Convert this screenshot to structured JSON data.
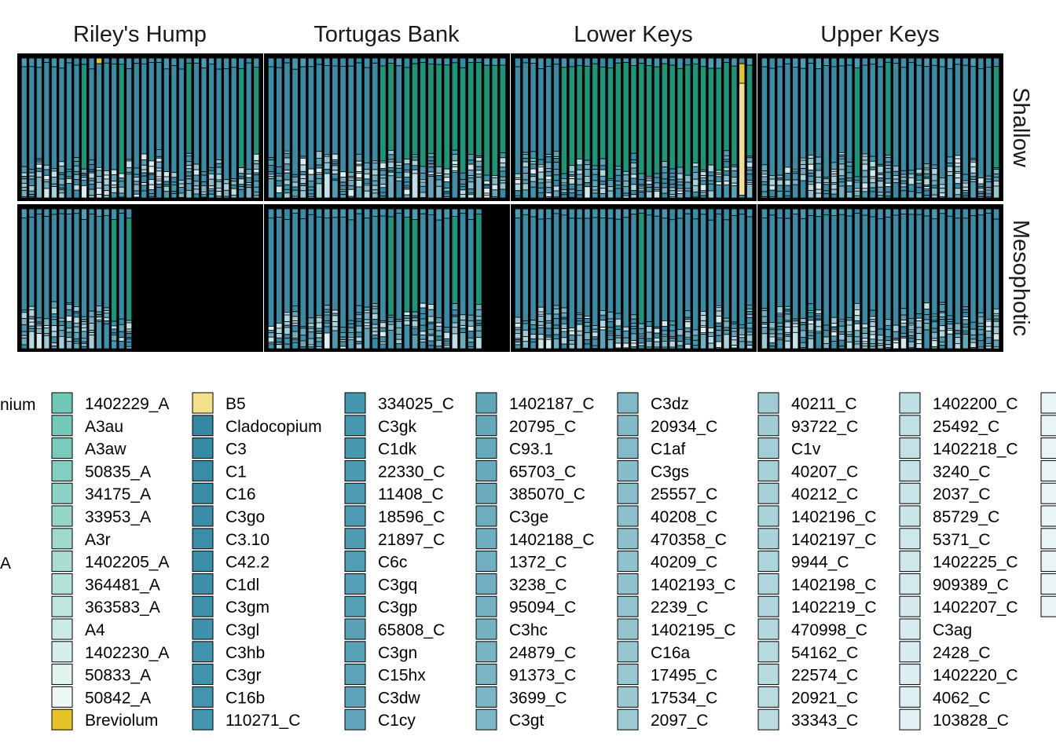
{
  "chart_data": {
    "type": "bar",
    "layout": "faceted-stacked-bar",
    "facet_columns": [
      "Riley's Hump",
      "Tortugas Bank",
      "Lower Keys",
      "Upper Keys"
    ],
    "facet_rows": [
      "Shallow",
      "Mesophotic"
    ],
    "ylim": [
      0,
      1
    ],
    "grid": false,
    "legend_position": "bottom",
    "colors": {
      "panel_background": "#000000",
      "bar_outline": "#000000",
      "dominant_cladocopium": "#3b8ba5",
      "dominant_alt": "#1e9478",
      "breviolum": "#e4c42a",
      "b5": "#f3e08a"
    },
    "samples_per_panel": [
      [
        32,
        30,
        31,
        31
      ],
      [
        15,
        27,
        31,
        31
      ]
    ],
    "highlights": [
      {
        "panel": "Lower Keys / Shallow",
        "sample": 29,
        "profile": "B5",
        "fraction": 0.82
      },
      {
        "panel": "Lower Keys / Shallow",
        "sample": 29,
        "profile": "Breviolum",
        "fraction": 0.14
      },
      {
        "panel": "Riley's Hump / Shallow",
        "sample": 10,
        "profile": "Breviolum",
        "fraction": 0.04
      }
    ],
    "legend": {
      "title_partial": "nium",
      "partial_column": [
        "",
        "",
        "",
        "",
        "",
        "",
        "",
        "A"
      ],
      "columns": [
        {
          "entries": [
            {
              "label": "1402229_A",
              "color": "#6fc7b6"
            },
            {
              "label": "A3au",
              "color": "#74c9b9"
            },
            {
              "label": "A3aw",
              "color": "#7acbbc"
            },
            {
              "label": "50835_A",
              "color": "#82cfc0"
            },
            {
              "label": "34175_A",
              "color": "#8bd2c4"
            },
            {
              "label": "33953_A",
              "color": "#95d6c9"
            },
            {
              "label": "A3r",
              "color": "#9fdacd"
            },
            {
              "label": "1402205_A",
              "color": "#a9ddd2"
            },
            {
              "label": "364481_A",
              "color": "#b4e2d8"
            },
            {
              "label": "363583_A",
              "color": "#bfe6de"
            },
            {
              "label": "A4",
              "color": "#caebe4"
            },
            {
              "label": "1402230_A",
              "color": "#d6efea"
            },
            {
              "label": "50833_A",
              "color": "#e2f4f0"
            },
            {
              "label": "50842_A",
              "color": "#eef8f6"
            },
            {
              "label": "Breviolum",
              "color": "#e4c42a"
            }
          ]
        },
        {
          "entries": [
            {
              "label": "B5",
              "color": "#f3e08a"
            },
            {
              "label": "Cladocopium",
              "color": "#3488a3"
            },
            {
              "label": "C3",
              "color": "#358aa5"
            },
            {
              "label": "C1",
              "color": "#378ca6"
            },
            {
              "label": "C16",
              "color": "#388ca7"
            },
            {
              "label": "C3go",
              "color": "#398da8"
            },
            {
              "label": "C3.10",
              "color": "#3a8ea8"
            },
            {
              "label": "C42.2",
              "color": "#3b8fa9"
            },
            {
              "label": "C1dl",
              "color": "#3c90aa"
            },
            {
              "label": "C3gm",
              "color": "#3d91ab"
            },
            {
              "label": "C3gl",
              "color": "#3e92ab"
            },
            {
              "label": "C3hb",
              "color": "#3f93ac"
            },
            {
              "label": "C3gr",
              "color": "#4094ad"
            },
            {
              "label": "C16b",
              "color": "#4195ad"
            },
            {
              "label": "110271_C",
              "color": "#4296ae"
            }
          ]
        },
        {
          "entries": [
            {
              "label": "334025_C",
              "color": "#4497af"
            },
            {
              "label": "C3gk",
              "color": "#4698b0"
            },
            {
              "label": "C1dk",
              "color": "#4899b0"
            },
            {
              "label": "22330_C",
              "color": "#4a9ab1"
            },
            {
              "label": "11408_C",
              "color": "#4c9bb2"
            },
            {
              "label": "18596_C",
              "color": "#4e9cb3"
            },
            {
              "label": "21897_C",
              "color": "#509db3"
            },
            {
              "label": "C6c",
              "color": "#529eb4"
            },
            {
              "label": "C3gq",
              "color": "#549fb5"
            },
            {
              "label": "C3gp",
              "color": "#56a0b6"
            },
            {
              "label": "65808_C",
              "color": "#58a1b6"
            },
            {
              "label": "C3gn",
              "color": "#5aa2b7"
            },
            {
              "label": "C15hx",
              "color": "#5ca3b8"
            },
            {
              "label": "C3dw",
              "color": "#5ea4b9"
            },
            {
              "label": "C1cy",
              "color": "#60a5b9"
            }
          ]
        },
        {
          "entries": [
            {
              "label": "1402187_C",
              "color": "#62a6ba"
            },
            {
              "label": "20795_C",
              "color": "#64a8bb"
            },
            {
              "label": "C93.1",
              "color": "#66a9bc"
            },
            {
              "label": "65703_C",
              "color": "#68aabd"
            },
            {
              "label": "385070_C",
              "color": "#6aabbd"
            },
            {
              "label": "C3ge",
              "color": "#6cadbe"
            },
            {
              "label": "1402188_C",
              "color": "#6eaebf"
            },
            {
              "label": "1372_C",
              "color": "#70afc0"
            },
            {
              "label": "3238_C",
              "color": "#72b0c1"
            },
            {
              "label": "95094_C",
              "color": "#74b1c1"
            },
            {
              "label": "C3hc",
              "color": "#76b3c2"
            },
            {
              "label": "24879_C",
              "color": "#78b4c3"
            },
            {
              "label": "91373_C",
              "color": "#7ab5c4"
            },
            {
              "label": "3699_C",
              "color": "#7cb6c5"
            },
            {
              "label": "C3gt",
              "color": "#7eb8c6"
            }
          ]
        },
        {
          "entries": [
            {
              "label": "C3dz",
              "color": "#80b9c7"
            },
            {
              "label": "20934_C",
              "color": "#82bac7"
            },
            {
              "label": "C1af",
              "color": "#84bbc8"
            },
            {
              "label": "C3gs",
              "color": "#86bdc9"
            },
            {
              "label": "25557_C",
              "color": "#88beca"
            },
            {
              "label": "40208_C",
              "color": "#8abfcb"
            },
            {
              "label": "470358_C",
              "color": "#8cc0cc"
            },
            {
              "label": "40209_C",
              "color": "#8ec2cd"
            },
            {
              "label": "1402193_C",
              "color": "#90c3ce"
            },
            {
              "label": "2239_C",
              "color": "#92c4cf"
            },
            {
              "label": "1402195_C",
              "color": "#94c5cf"
            },
            {
              "label": "C16a",
              "color": "#96c7d0"
            },
            {
              "label": "17495_C",
              "color": "#98c8d1"
            },
            {
              "label": "17534_C",
              "color": "#9ac9d2"
            },
            {
              "label": "2097_C",
              "color": "#9ccad3"
            }
          ]
        },
        {
          "entries": [
            {
              "label": "40211_C",
              "color": "#9fccd5"
            },
            {
              "label": "93722_C",
              "color": "#a1cdd6"
            },
            {
              "label": "C1v",
              "color": "#a3ced7"
            },
            {
              "label": "40207_C",
              "color": "#a5d0d8"
            },
            {
              "label": "40212_C",
              "color": "#a7d1d9"
            },
            {
              "label": "1402196_C",
              "color": "#a9d2da"
            },
            {
              "label": "1402197_C",
              "color": "#abd3db"
            },
            {
              "label": "9944_C",
              "color": "#add5dc"
            },
            {
              "label": "1402198_C",
              "color": "#afd6dd"
            },
            {
              "label": "1402219_C",
              "color": "#b1d7de"
            },
            {
              "label": "470998_C",
              "color": "#b3d8df"
            },
            {
              "label": "54162_C",
              "color": "#b5dae0"
            },
            {
              "label": "22574_C",
              "color": "#b7dbe1"
            },
            {
              "label": "20921_C",
              "color": "#b9dce2"
            },
            {
              "label": "33343_C",
              "color": "#bbdde3"
            }
          ]
        },
        {
          "entries": [
            {
              "label": "1402200_C",
              "color": "#bedfe5"
            },
            {
              "label": "25492_C",
              "color": "#c0e0e6"
            },
            {
              "label": "1402218_C",
              "color": "#c3e1e7"
            },
            {
              "label": "3240_C",
              "color": "#c5e3e8"
            },
            {
              "label": "2037_C",
              "color": "#c8e4e9"
            },
            {
              "label": "85729_C",
              "color": "#cae5ea"
            },
            {
              "label": "5371_C",
              "color": "#cde7eb"
            },
            {
              "label": "1402225_C",
              "color": "#cfe8ec"
            },
            {
              "label": "909389_C",
              "color": "#d2e9ed"
            },
            {
              "label": "1402207_C",
              "color": "#d4eaee"
            },
            {
              "label": "C3ag",
              "color": "#d7ecef"
            },
            {
              "label": "2428_C",
              "color": "#d9edf0"
            },
            {
              "label": "1402220_C",
              "color": "#dceef1"
            },
            {
              "label": "4062_C",
              "color": "#deeff2"
            },
            {
              "label": "103828_C",
              "color": "#e1f1f4"
            }
          ]
        }
      ],
      "overflow_swatches": 10,
      "overflow_color": "#e8f4f6"
    }
  }
}
